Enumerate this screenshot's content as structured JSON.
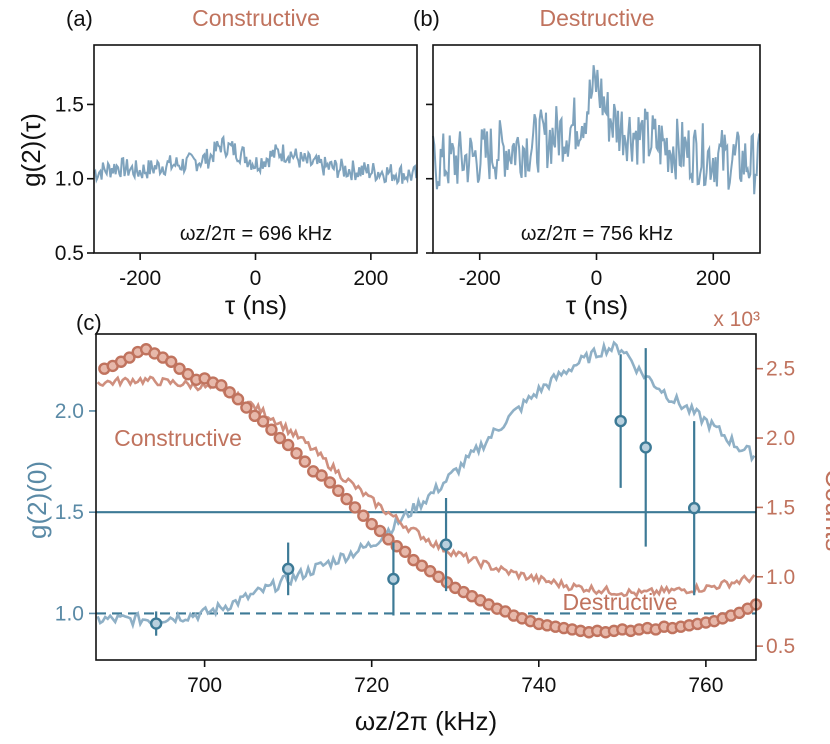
{
  "colors": {
    "blue": "#5a8aa6",
    "blue_light": "#8fb0c6",
    "red": "#c0735e",
    "red_light": "#cf8f7e",
    "dark_blue": "#3d7a96"
  },
  "chart_data": [
    {
      "panel": "a",
      "type": "line",
      "panel_label": "(a)",
      "title": "Constructive",
      "annotation": "ωz/2π = 696 kHz",
      "xlabel": "τ (ns)",
      "ylabel": "g(2)(τ)",
      "xlim": [
        -280,
        280
      ],
      "ylim": [
        0.5,
        1.9
      ],
      "xticks": [
        -200,
        0,
        200
      ],
      "yticks": [
        0.5,
        1.0,
        1.5
      ],
      "ytick_labels": [
        "0.5",
        "1.0",
        "1.5"
      ],
      "series": [
        {
          "x": [
            -280,
            -240,
            -200,
            -160,
            -120,
            -80,
            -60,
            -40,
            -20,
            0,
            20,
            40,
            60,
            80,
            120,
            160,
            200,
            240,
            280
          ],
          "y": [
            1.04,
            1.08,
            1.05,
            1.09,
            1.1,
            1.14,
            1.23,
            1.2,
            1.16,
            1.1,
            1.14,
            1.18,
            1.17,
            1.12,
            1.08,
            1.06,
            1.05,
            1.04,
            1.02
          ]
        }
      ]
    },
    {
      "panel": "b",
      "type": "line",
      "panel_label": "(b)",
      "title": "Destructive",
      "annotation": "ωz/2π = 756 kHz",
      "xlabel": "τ (ns)",
      "xlim": [
        -280,
        280
      ],
      "ylim": [
        0.5,
        1.9
      ],
      "xticks": [
        -200,
        0,
        200
      ],
      "series": [
        {
          "x": [
            -280,
            -240,
            -200,
            -160,
            -120,
            -80,
            -40,
            -20,
            0,
            20,
            40,
            80,
            120,
            160,
            200,
            240,
            280
          ],
          "y": [
            1.1,
            1.12,
            1.15,
            1.2,
            1.22,
            1.28,
            1.35,
            1.45,
            1.65,
            1.42,
            1.35,
            1.28,
            1.22,
            1.18,
            1.15,
            1.12,
            1.1
          ]
        }
      ]
    },
    {
      "panel": "c",
      "type": "line",
      "panel_label": "(c)",
      "xlabel": "ωz/2π (kHz)",
      "ylabel_left": "g(2)(0)",
      "ylabel_right": "Counts",
      "right_multiplier": "x 10³",
      "xlim": [
        687,
        766
      ],
      "xticks": [
        700,
        720,
        740,
        760
      ],
      "ylim_left": [
        0.77,
        2.38
      ],
      "yticks_left": [
        1.0,
        1.5,
        2.0
      ],
      "ytick_labels_left": [
        "1.0",
        "1.5",
        "2.0"
      ],
      "ylim_right": [
        0.4,
        2.75
      ],
      "yticks_right": [
        0.5,
        1.0,
        1.5,
        2.0,
        2.5
      ],
      "ytick_labels_right": [
        "0.5",
        "1.0",
        "1.5",
        "2.0",
        "2.5"
      ],
      "reference_lines_left": [
        {
          "y": 1.5,
          "style": "solid"
        },
        {
          "y": 1.0,
          "style": "dashed"
        }
      ],
      "labels": {
        "constructive": "Constructive",
        "destructive": "Destructive"
      },
      "g2_curve": {
        "x": [
          688,
          692,
          696,
          700,
          704,
          708,
          712,
          716,
          720,
          724,
          728,
          732,
          736,
          740,
          744,
          748,
          750,
          752,
          756,
          760,
          764,
          766
        ],
        "y": [
          0.97,
          0.97,
          0.98,
          1.0,
          1.06,
          1.13,
          1.2,
          1.27,
          1.34,
          1.48,
          1.62,
          1.78,
          1.95,
          2.1,
          2.22,
          2.31,
          2.31,
          2.2,
          2.06,
          1.95,
          1.82,
          1.78
        ]
      },
      "counts_curve": {
        "x": [
          688,
          692,
          696,
          700,
          704,
          708,
          712,
          716,
          720,
          724,
          728,
          732,
          736,
          740,
          744,
          748,
          752,
          756,
          760,
          764,
          766
        ],
        "y": [
          2.4,
          2.42,
          2.4,
          2.37,
          2.3,
          2.15,
          1.97,
          1.75,
          1.55,
          1.37,
          1.22,
          1.12,
          1.04,
          0.98,
          0.93,
          0.9,
          0.88,
          0.9,
          0.92,
          0.97,
          1.0
        ]
      },
      "counts_points": {
        "x": [
          688,
          689,
          690,
          691,
          692,
          693,
          694,
          695,
          696,
          697,
          698,
          699,
          700,
          701,
          702,
          703,
          704,
          705,
          706,
          707,
          708,
          709,
          710,
          711,
          712,
          713,
          714,
          715,
          716,
          717,
          718,
          719,
          720,
          721,
          722,
          723,
          724,
          725,
          726,
          727,
          728,
          729,
          730,
          731,
          732,
          733,
          734,
          735,
          736,
          737,
          738,
          739,
          740,
          741,
          742,
          743,
          744,
          745,
          746,
          747,
          748,
          749,
          750,
          751,
          752,
          753,
          754,
          755,
          756,
          757,
          758,
          759,
          760,
          761,
          762,
          763,
          764,
          765,
          766
        ],
        "y": [
          2.5,
          2.52,
          2.55,
          2.58,
          2.62,
          2.64,
          2.61,
          2.58,
          2.55,
          2.5,
          2.46,
          2.42,
          2.43,
          2.4,
          2.38,
          2.33,
          2.28,
          2.22,
          2.16,
          2.12,
          2.06,
          2.0,
          1.95,
          1.89,
          1.83,
          1.76,
          1.73,
          1.68,
          1.62,
          1.56,
          1.5,
          1.44,
          1.38,
          1.33,
          1.27,
          1.22,
          1.18,
          1.12,
          1.08,
          1.04,
          1.0,
          0.96,
          0.92,
          0.89,
          0.86,
          0.83,
          0.8,
          0.77,
          0.75,
          0.72,
          0.7,
          0.68,
          0.66,
          0.65,
          0.64,
          0.63,
          0.62,
          0.61,
          0.6,
          0.61,
          0.6,
          0.61,
          0.62,
          0.61,
          0.62,
          0.63,
          0.62,
          0.64,
          0.63,
          0.64,
          0.65,
          0.66,
          0.67,
          0.68,
          0.7,
          0.72,
          0.74,
          0.77,
          0.8
        ]
      },
      "g2_points": [
        {
          "x": 694.2,
          "y": 0.95,
          "err": 0.06
        },
        {
          "x": 710.0,
          "y": 1.22,
          "err": 0.13
        },
        {
          "x": 722.6,
          "y": 1.17,
          "err": 0.18
        },
        {
          "x": 728.9,
          "y": 1.34,
          "err": 0.23
        },
        {
          "x": 749.8,
          "y": 1.95,
          "err": 0.33
        },
        {
          "x": 752.8,
          "y": 1.82,
          "err": 0.49
        },
        {
          "x": 758.6,
          "y": 1.52,
          "err": 0.43
        }
      ]
    }
  ]
}
